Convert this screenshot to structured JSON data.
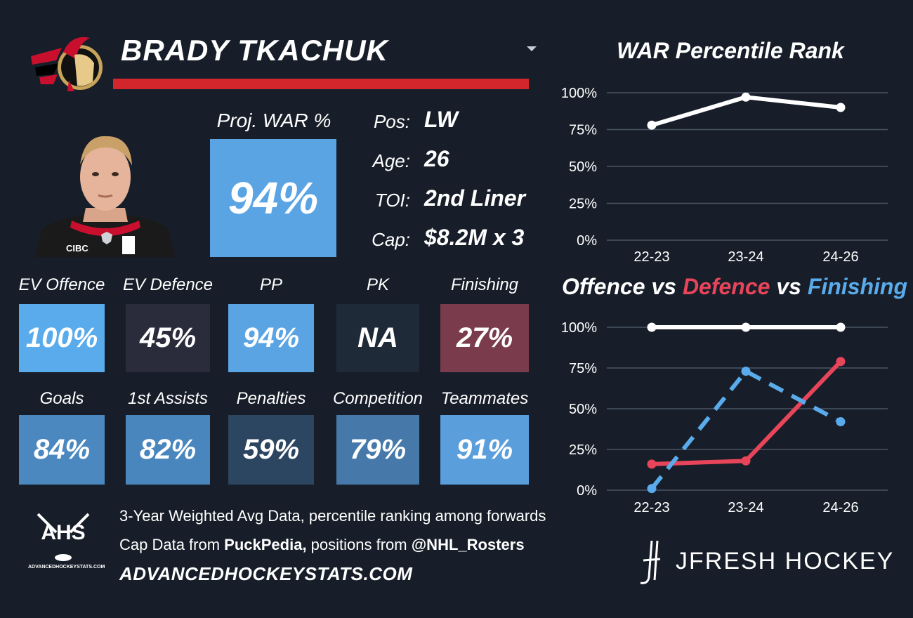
{
  "player": {
    "name": "BRADY TKACHUK",
    "proj_war_label": "Proj. WAR %",
    "proj_war_value": "94%",
    "info": [
      {
        "label": "Pos:",
        "value": "LW"
      },
      {
        "label": "Age:",
        "value": "26"
      },
      {
        "label": "TOI:",
        "value": "2nd Liner"
      },
      {
        "label": "Cap:",
        "value": "$8.2M x 3"
      }
    ],
    "jersey_sponsor": "CIBC"
  },
  "tiles_row1": [
    {
      "label": "EV Offence",
      "value": "100%",
      "color": "#5aabeb"
    },
    {
      "label": "EV Defence",
      "value": "45%",
      "color": "#2b2c3b"
    },
    {
      "label": "PP",
      "value": "94%",
      "color": "#5aa4e4"
    },
    {
      "label": "PK",
      "value": "NA",
      "color": "#1f2a38"
    },
    {
      "label": "Finishing",
      "value": "27%",
      "color": "#7a3c4d"
    }
  ],
  "tiles_row2": [
    {
      "label": "Goals",
      "value": "84%",
      "color": "#4c88c0"
    },
    {
      "label": "1st Assists",
      "value": "82%",
      "color": "#4a86be"
    },
    {
      "label": "Penalties",
      "value": "59%",
      "color": "#2c4560"
    },
    {
      "label": "Competition",
      "value": "79%",
      "color": "#4679a9"
    },
    {
      "label": "Teammates",
      "value": "91%",
      "color": "#5a9edc"
    }
  ],
  "footer": {
    "line1": "3-Year Weighted Avg Data, percentile ranking among forwards",
    "line2_prefix": "Cap Data from ",
    "line2_source": "PuckPedia,",
    "line2_middle": " positions from ",
    "line2_handle": "@NHL_Rosters",
    "site": "ADVANCEDHOCKEYSTATS.COM",
    "ahs_logo": "AHS",
    "ahs_logo_sub": "ADVANCEDHOCKEYSTATS.COM",
    "brand": "JFRESH HOCKEY"
  },
  "chart_data": [
    {
      "type": "line",
      "title": "WAR Percentile Rank",
      "categories": [
        "22-23",
        "23-24",
        "24-26"
      ],
      "ytick_labels": [
        "100%",
        "75%",
        "50%",
        "25%",
        "0%"
      ],
      "ylim": [
        0,
        100
      ],
      "grid": true,
      "series": [
        {
          "values": [
            78,
            97,
            90
          ],
          "color": "#ffffff",
          "style": "solid"
        }
      ]
    },
    {
      "type": "line",
      "title_parts": [
        {
          "text": "Offence",
          "color": "#ffffff"
        },
        {
          "text": " vs ",
          "color": "#ffffff"
        },
        {
          "text": "Defence",
          "color": "#e8455a"
        },
        {
          "text": " vs ",
          "color": "#ffffff"
        },
        {
          "text": "Finishing",
          "color": "#5aabeb"
        }
      ],
      "categories": [
        "22-23",
        "23-24",
        "24-26"
      ],
      "ytick_labels": [
        "100%",
        "75%",
        "50%",
        "25%",
        "0%"
      ],
      "ylim": [
        0,
        100
      ],
      "grid": true,
      "series": [
        {
          "name": "Offence",
          "values": [
            100,
            100,
            100
          ],
          "color": "#ffffff",
          "style": "solid"
        },
        {
          "name": "Defence",
          "values": [
            16,
            18,
            79
          ],
          "color": "#e8455a",
          "style": "solid"
        },
        {
          "name": "Finishing",
          "values": [
            1,
            73,
            42
          ],
          "color": "#5aabeb",
          "style": "dashed"
        }
      ]
    }
  ]
}
